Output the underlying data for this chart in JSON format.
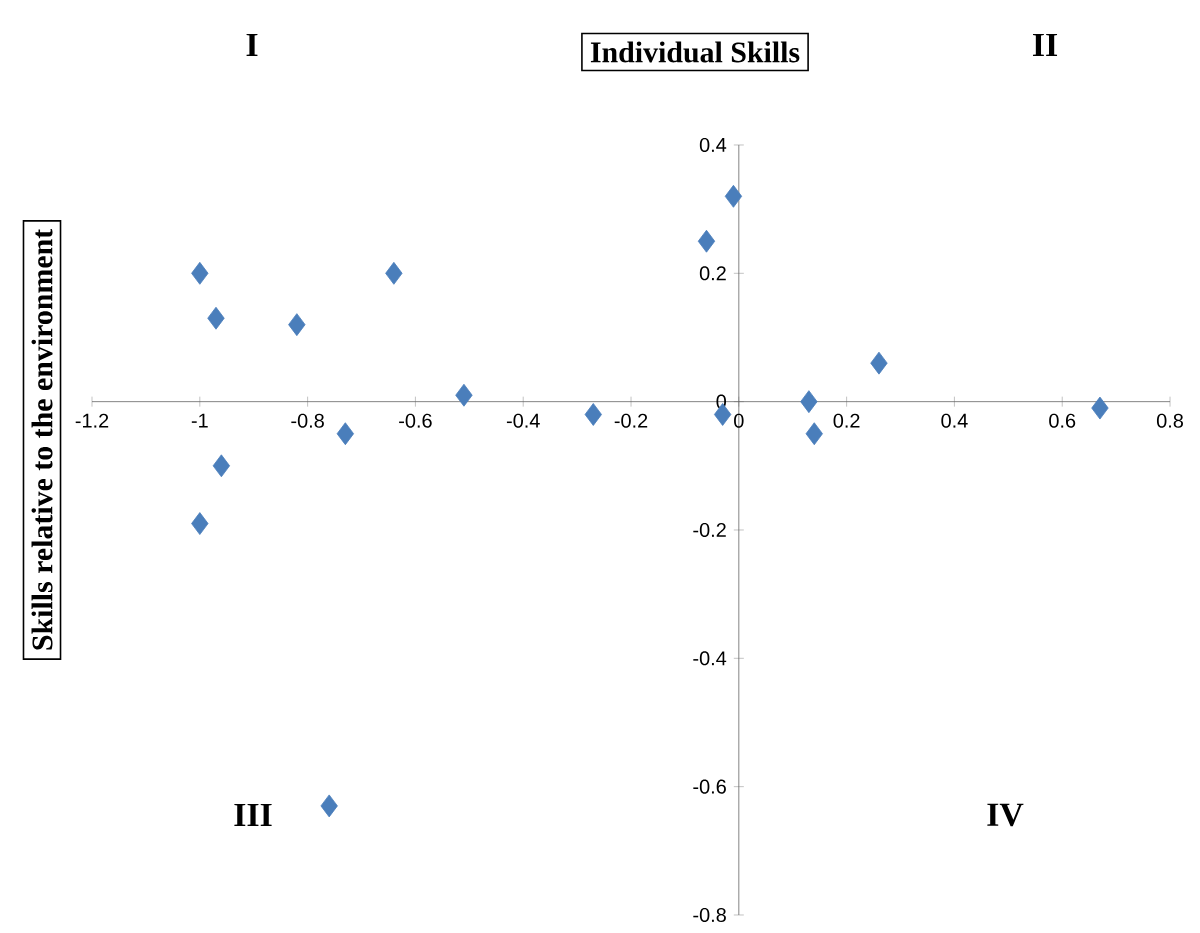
{
  "chart_data": {
    "type": "scatter",
    "title": "Individual Skills",
    "ylabel": "Skills relative to the environment",
    "annotations": [
      "I",
      "II",
      "III",
      "IV"
    ],
    "xlim": [
      -1.2,
      0.8
    ],
    "ylim": [
      -0.8,
      0.4
    ],
    "xticks": [
      -1.2,
      -1,
      -0.8,
      -0.6,
      -0.4,
      -0.2,
      0,
      0.2,
      0.4,
      0.6,
      0.8
    ],
    "yticks": [
      -0.8,
      -0.6,
      -0.4,
      -0.2,
      0,
      0.2,
      0.4
    ],
    "marker": "diamond",
    "series": [
      {
        "color": "#4a7ebb",
        "x": [
          -1.0,
          -0.97,
          -0.82,
          -0.64,
          -0.51,
          -0.73,
          -0.96,
          -1.0,
          -0.76,
          -0.27,
          -0.06,
          -0.01,
          -0.03,
          0.13,
          0.14,
          0.26,
          0.67
        ],
        "values": [
          0.2,
          0.13,
          0.12,
          0.2,
          0.01,
          -0.05,
          -0.1,
          -0.19,
          -0.63,
          -0.02,
          0.25,
          0.32,
          -0.02,
          0.0,
          -0.05,
          0.06,
          -0.01
        ]
      }
    ]
  }
}
